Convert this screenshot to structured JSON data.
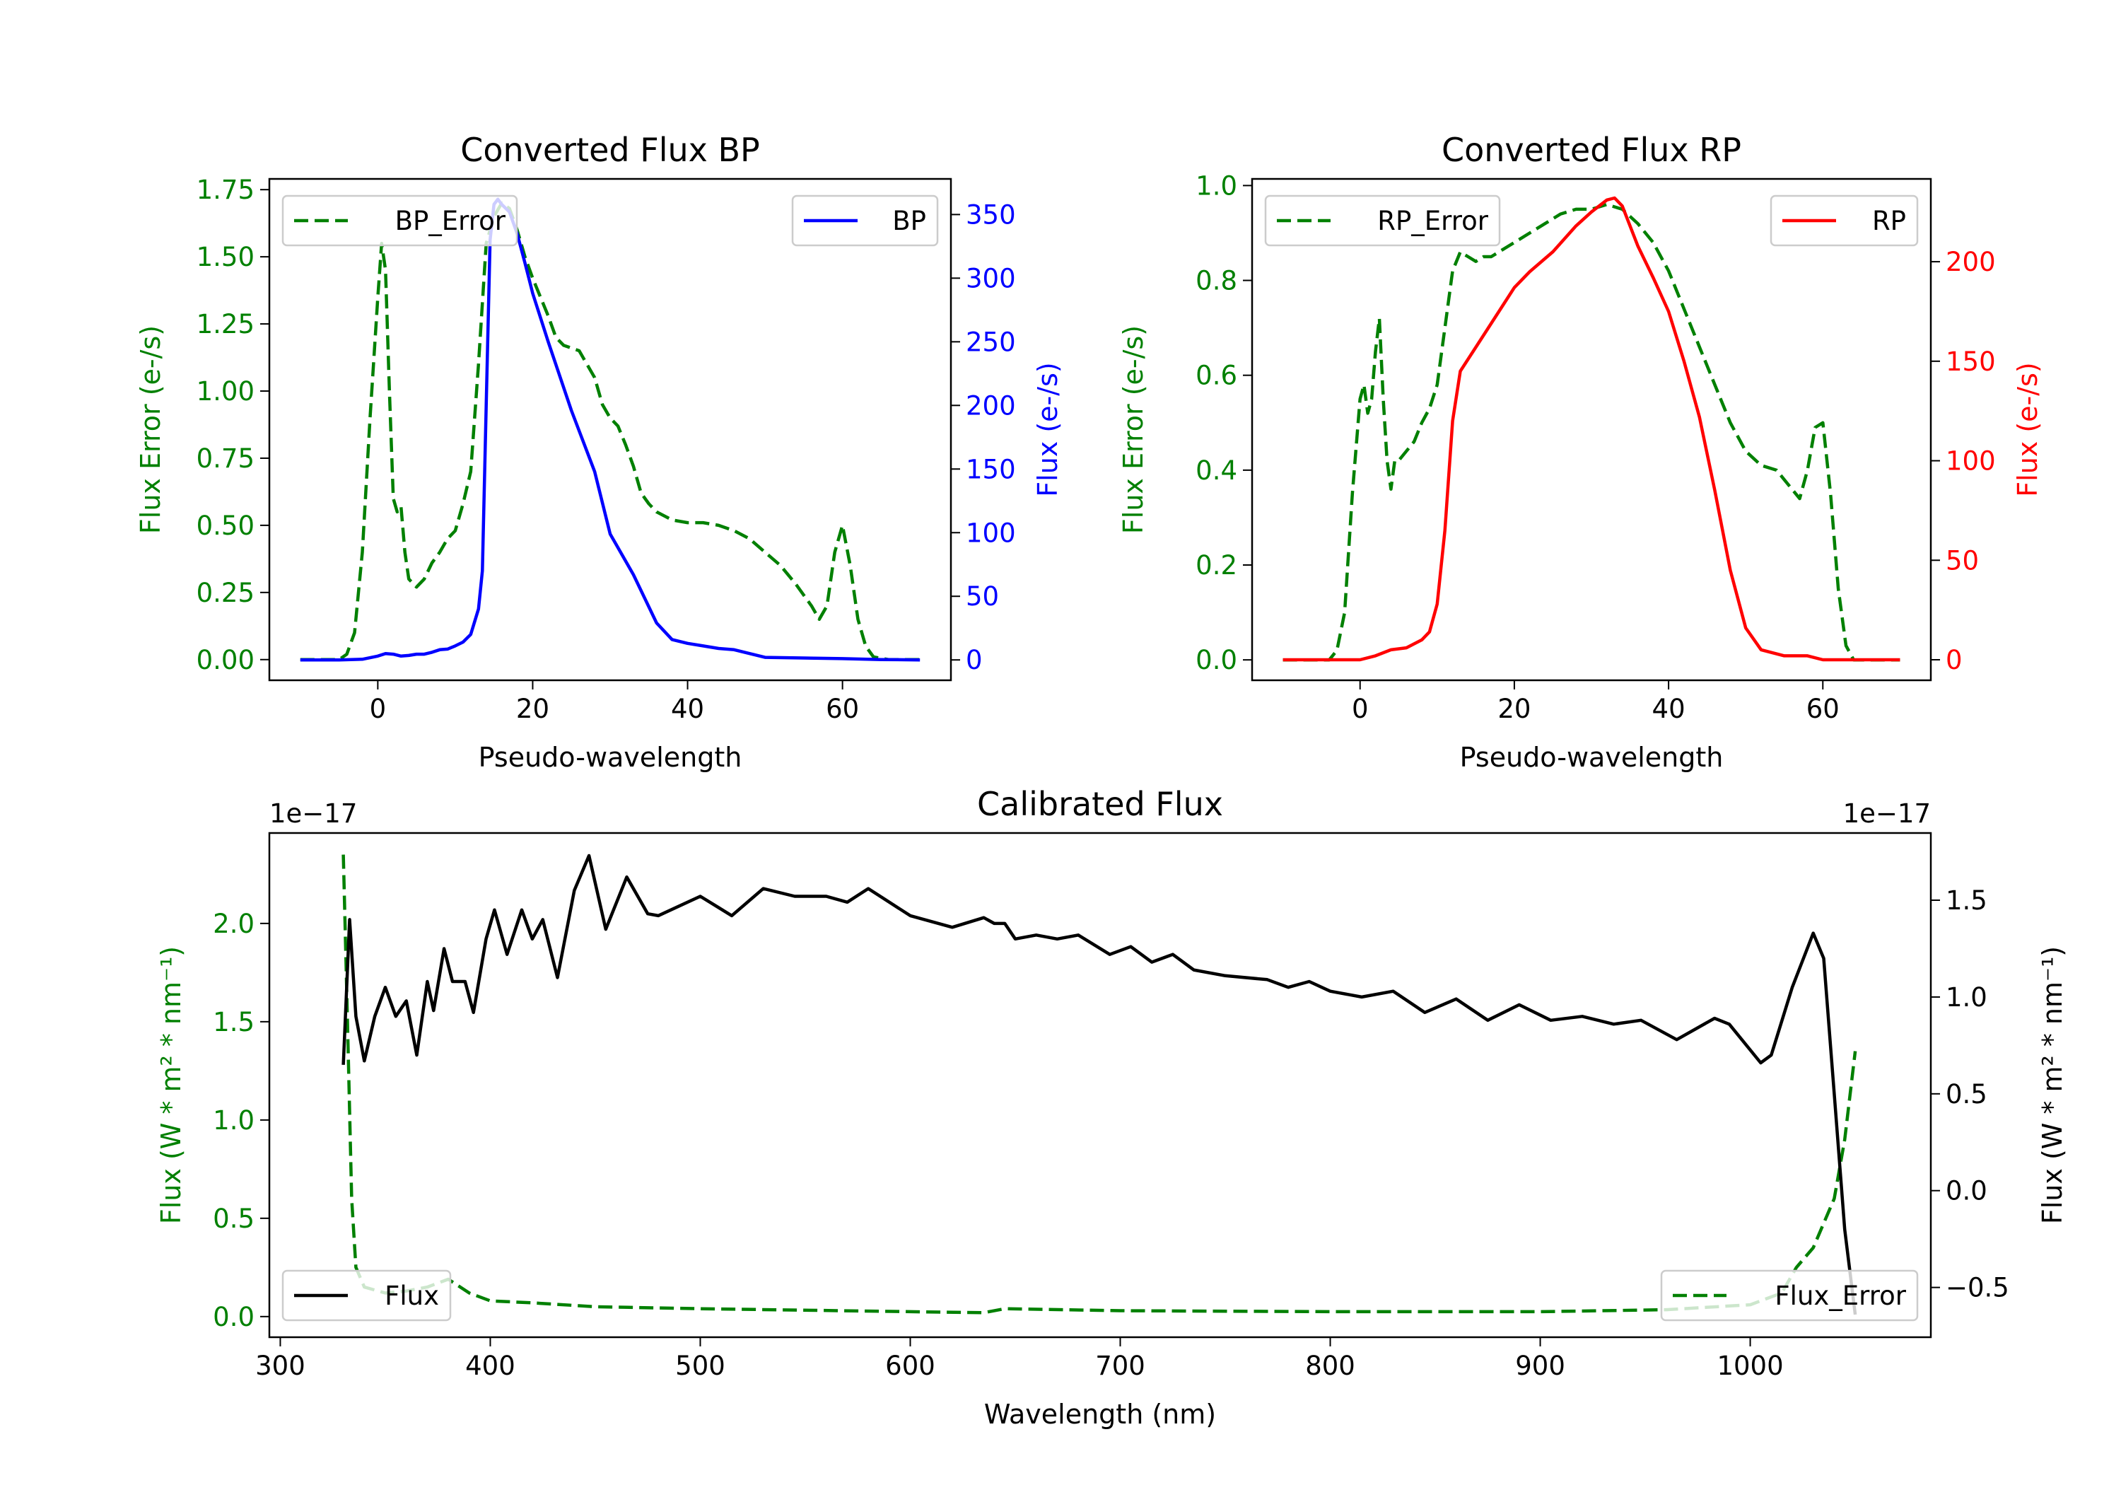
{
  "chart_data": [
    {
      "type": "line",
      "title": "Converted Flux BP",
      "xlabel": "Pseudo-wavelength",
      "ylabel_left": "Flux Error (e-/s)",
      "ylabel_right": "Flux (e-/s)",
      "xlim": [
        -14,
        74
      ],
      "ylim_left": [
        -0.077,
        1.79
      ],
      "ylim_right": [
        -16,
        378
      ],
      "xticks": [
        0,
        20,
        40,
        60
      ],
      "yticks_left": [
        "0.00",
        "0.25",
        "0.50",
        "0.75",
        "1.00",
        "1.25",
        "1.50",
        "1.75"
      ],
      "yticks_right": [
        "0",
        "50",
        "100",
        "150",
        "200",
        "250",
        "300",
        "350"
      ],
      "left_color": "#008000",
      "right_color": "#0000ff",
      "series": [
        {
          "name": "BP_Error",
          "axis": "left",
          "style": "dashed",
          "color": "#008000",
          "legend": "top-left",
          "x": [
            -10,
            -5,
            -4,
            -3,
            -2,
            -1,
            0,
            0.5,
            1,
            1.5,
            2,
            2.5,
            3,
            3.5,
            4,
            5,
            6,
            7,
            8,
            9,
            10,
            11,
            12,
            13,
            14,
            15,
            16,
            17,
            18,
            19,
            20,
            21,
            22,
            23,
            24,
            25,
            26,
            27,
            28,
            29,
            30,
            31,
            32,
            33,
            34,
            35,
            36,
            38,
            40,
            42,
            44,
            46,
            48,
            50,
            52,
            54,
            56,
            57,
            58,
            59,
            60,
            61,
            62,
            63,
            64,
            66,
            70
          ],
          "y": [
            0,
            0,
            0.02,
            0.1,
            0.4,
            0.9,
            1.35,
            1.55,
            1.45,
            1.0,
            0.6,
            0.55,
            0.57,
            0.4,
            0.3,
            0.27,
            0.3,
            0.36,
            0.4,
            0.45,
            0.48,
            0.58,
            0.7,
            1.1,
            1.55,
            1.65,
            1.7,
            1.68,
            1.6,
            1.5,
            1.42,
            1.35,
            1.28,
            1.2,
            1.17,
            1.16,
            1.15,
            1.1,
            1.05,
            0.95,
            0.9,
            0.87,
            0.8,
            0.72,
            0.62,
            0.58,
            0.55,
            0.52,
            0.51,
            0.51,
            0.5,
            0.48,
            0.45,
            0.4,
            0.35,
            0.28,
            0.2,
            0.15,
            0.2,
            0.4,
            0.5,
            0.35,
            0.15,
            0.05,
            0.01,
            0,
            0
          ]
        },
        {
          "name": "BP",
          "axis": "right",
          "style": "solid",
          "color": "#0000ff",
          "legend": "top-right",
          "x": [
            -10,
            -5,
            -2,
            0,
            1,
            2,
            3,
            4,
            5,
            6,
            7,
            8,
            9,
            10,
            11,
            12,
            13,
            13.5,
            14,
            14.5,
            15,
            15.5,
            16,
            17,
            18,
            19,
            20,
            22,
            25,
            28,
            30,
            33,
            36,
            38,
            40,
            42,
            44,
            46,
            48,
            50,
            55,
            60,
            65,
            70
          ],
          "y": [
            0,
            0,
            0.5,
            3,
            5,
            4.5,
            3,
            3.5,
            4.5,
            4.5,
            6,
            8,
            8.5,
            11,
            14,
            20,
            40,
            70,
            200,
            330,
            358,
            362,
            358,
            352,
            335,
            312,
            288,
            250,
            196,
            148,
            99,
            67,
            29,
            16,
            13,
            11,
            9,
            8,
            5,
            2,
            1.5,
            1,
            0.3,
            0
          ]
        }
      ]
    },
    {
      "type": "line",
      "title": "Converted Flux RP",
      "xlabel": "Pseudo-wavelength",
      "ylabel_left": "Flux Error (e-/s)",
      "ylabel_right": "Flux (e-/s)",
      "xlim": [
        -14,
        74
      ],
      "ylim_left": [
        -0.043,
        1.014
      ],
      "ylim_right": [
        -10.3,
        241.6
      ],
      "xticks": [
        0,
        20,
        40,
        60
      ],
      "yticks_left": [
        "0.0",
        "0.2",
        "0.4",
        "0.6",
        "0.8",
        "1.0"
      ],
      "yticks_right": [
        "0",
        "50",
        "100",
        "150",
        "200"
      ],
      "left_color": "#008000",
      "right_color": "#ff0000",
      "series": [
        {
          "name": "RP_Error",
          "axis": "left",
          "style": "dashed",
          "color": "#008000",
          "legend": "top-left",
          "x": [
            -10,
            -4,
            -3,
            -2,
            -1,
            0,
            0.5,
            1,
            1.5,
            2,
            2.5,
            3,
            3.5,
            4,
            4.5,
            5,
            6,
            7,
            8,
            9,
            10,
            11,
            12,
            13,
            14,
            15,
            16,
            17,
            18,
            20,
            22,
            24,
            26,
            28,
            30,
            32,
            34,
            36,
            38,
            40,
            42,
            44,
            46,
            48,
            50,
            52,
            54,
            55,
            56,
            57,
            58,
            59,
            60,
            61,
            62,
            63,
            64,
            70
          ],
          "y": [
            0,
            0,
            0.02,
            0.1,
            0.35,
            0.55,
            0.58,
            0.52,
            0.55,
            0.65,
            0.72,
            0.55,
            0.42,
            0.36,
            0.42,
            0.42,
            0.44,
            0.46,
            0.5,
            0.53,
            0.58,
            0.7,
            0.82,
            0.86,
            0.85,
            0.84,
            0.85,
            0.85,
            0.86,
            0.88,
            0.9,
            0.92,
            0.94,
            0.95,
            0.95,
            0.96,
            0.95,
            0.92,
            0.88,
            0.82,
            0.74,
            0.66,
            0.58,
            0.5,
            0.44,
            0.41,
            0.4,
            0.38,
            0.36,
            0.34,
            0.4,
            0.49,
            0.5,
            0.35,
            0.15,
            0.03,
            0,
            0
          ]
        },
        {
          "name": "RP",
          "axis": "right",
          "style": "solid",
          "color": "#ff0000",
          "legend": "top-right",
          "x": [
            -10,
            0,
            2,
            4,
            6,
            8,
            9,
            10,
            11,
            12,
            13,
            15,
            18,
            20,
            22,
            25,
            28,
            30,
            32,
            33,
            34,
            36,
            38,
            40,
            42,
            44,
            46,
            48,
            50,
            52,
            55,
            58,
            60,
            62,
            70
          ],
          "y": [
            0,
            0,
            2,
            5,
            6,
            10,
            14,
            28,
            65,
            120,
            145,
            157,
            175,
            187,
            195,
            205,
            218,
            225,
            231,
            232,
            228,
            208,
            192,
            175,
            150,
            122,
            85,
            45,
            16,
            5,
            2,
            2,
            0,
            0,
            0
          ]
        }
      ]
    },
    {
      "type": "line",
      "title": "Calibrated Flux",
      "xlabel": "Wavelength (nm)",
      "ylabel_left": "Flux (W * m² * nm⁻¹)",
      "ylabel_right": "Flux (W * m² * nm⁻¹)",
      "offset_left": "1e−17",
      "offset_right": "1e−17",
      "xlim": [
        294.8,
        1086
      ],
      "ylim_left": [
        -0.105,
        2.46
      ],
      "ylim_right": [
        -0.757,
        1.847
      ],
      "xticks": [
        300,
        400,
        500,
        600,
        700,
        800,
        900,
        1000
      ],
      "yticks_left": [
        "0.0",
        "0.5",
        "1.0",
        "1.5",
        "2.0"
      ],
      "yticks_right": [
        "−0.5",
        "0.0",
        "0.5",
        "1.0",
        "1.5"
      ],
      "left_color": "#008000",
      "right_color": "#000000",
      "series": [
        {
          "name": "Flux_Error",
          "axis": "left",
          "style": "dashed",
          "color": "#008000",
          "legend": "lower-right",
          "x": [
            330,
            332,
            334,
            336,
            340,
            350,
            360,
            370,
            380,
            390,
            400,
            420,
            450,
            500,
            600,
            635,
            645,
            700,
            800,
            900,
            960,
            1000,
            1015,
            1022,
            1030,
            1040,
            1045,
            1050
          ],
          "y": [
            2.35,
            1.5,
            0.6,
            0.25,
            0.15,
            0.12,
            0.13,
            0.15,
            0.19,
            0.12,
            0.08,
            0.07,
            0.05,
            0.04,
            0.025,
            0.02,
            0.04,
            0.03,
            0.025,
            0.025,
            0.035,
            0.06,
            0.12,
            0.25,
            0.35,
            0.6,
            0.9,
            1.35
          ]
        },
        {
          "name": "Flux",
          "axis": "right",
          "style": "solid",
          "color": "#000000",
          "legend": "lower-left",
          "x": [
            330,
            333,
            336,
            340,
            345,
            350,
            355,
            360,
            365,
            370,
            373,
            378,
            382,
            388,
            392,
            398,
            402,
            408,
            415,
            420,
            425,
            432,
            440,
            447,
            455,
            465,
            475,
            480,
            500,
            515,
            530,
            545,
            560,
            570,
            580,
            600,
            620,
            635,
            640,
            645,
            650,
            660,
            670,
            680,
            695,
            705,
            715,
            725,
            735,
            750,
            770,
            780,
            790,
            800,
            815,
            830,
            845,
            860,
            875,
            890,
            905,
            920,
            935,
            948,
            965,
            983,
            990,
            1005,
            1010,
            1020,
            1030,
            1035,
            1040,
            1045,
            1050
          ],
          "y": [
            0.65,
            1.4,
            0.9,
            0.67,
            0.9,
            1.05,
            0.9,
            0.98,
            0.7,
            1.08,
            0.93,
            1.25,
            1.08,
            1.08,
            0.92,
            1.3,
            1.45,
            1.22,
            1.45,
            1.3,
            1.4,
            1.1,
            1.55,
            1.73,
            1.35,
            1.62,
            1.43,
            1.42,
            1.52,
            1.42,
            1.56,
            1.52,
            1.52,
            1.49,
            1.56,
            1.42,
            1.36,
            1.41,
            1.38,
            1.38,
            1.3,
            1.32,
            1.3,
            1.32,
            1.22,
            1.26,
            1.18,
            1.22,
            1.14,
            1.11,
            1.09,
            1.05,
            1.08,
            1.03,
            1.0,
            1.03,
            0.92,
            0.99,
            0.88,
            0.96,
            0.88,
            0.9,
            0.86,
            0.88,
            0.78,
            0.89,
            0.86,
            0.66,
            0.7,
            1.05,
            1.33,
            1.2,
            0.5,
            -0.2,
            -0.64
          ]
        }
      ]
    }
  ]
}
